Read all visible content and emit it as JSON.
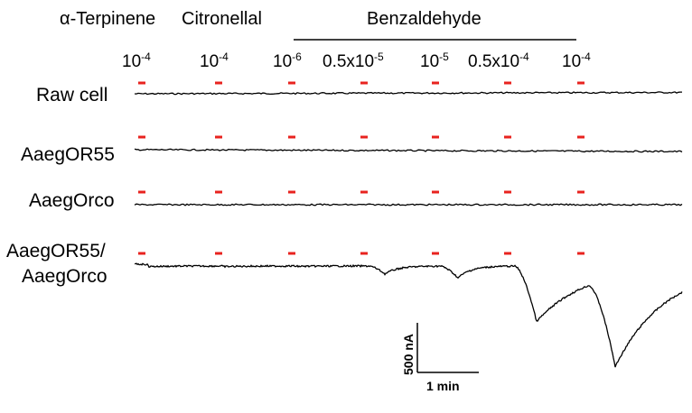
{
  "header": {
    "compound_1": "α-Terpinene",
    "compound_2": "Citronellal",
    "compound_3": "Benzaldehyde"
  },
  "concentrations": [
    {
      "base": "10",
      "exp": "-4"
    },
    {
      "base": "10",
      "exp": "-4"
    },
    {
      "base": "10",
      "exp": "-6"
    },
    {
      "base": "0.5x10",
      "exp": "-5"
    },
    {
      "base": "10",
      "exp": "-5"
    },
    {
      "base": "0.5x10",
      "exp": "-4"
    },
    {
      "base": "10",
      "exp": "-4"
    }
  ],
  "rows": {
    "row_1": "Raw cell",
    "row_2": "AaegOR55",
    "row_3": "AaegOrco",
    "row_4_line1": "AaegOR55/",
    "row_4_line2": "AaegOrco"
  },
  "scale_bar": {
    "y_label": "500 nA",
    "x_label": "1 min"
  },
  "colors": {
    "stimulus_mark": "#e8231f",
    "trace": "#000000"
  },
  "chart_data": {
    "type": "line",
    "stimuli": [
      "10-4 α-Terpinene",
      "10-4 Citronellal",
      "10-6 Benzaldehyde",
      "0.5x10-5 Benzaldehyde",
      "10-5 Benzaldehyde",
      "0.5x10-4 Benzaldehyde",
      "10-4 Benzaldehyde"
    ],
    "series": [
      {
        "name": "Raw cell",
        "responses_nA": [
          0,
          0,
          0,
          0,
          0,
          0,
          0
        ]
      },
      {
        "name": "AaegOR55",
        "responses_nA": [
          0,
          0,
          0,
          0,
          0,
          0,
          0
        ]
      },
      {
        "name": "AaegOrco",
        "responses_nA": [
          0,
          0,
          0,
          0,
          0,
          0,
          0
        ]
      },
      {
        "name": "AaegOR55/AaegOrco",
        "responses_nA": [
          -50,
          -50,
          -30,
          -80,
          -120,
          -560,
          -900
        ]
      }
    ],
    "scale_current_nA": 500,
    "scale_time_min": 1
  }
}
